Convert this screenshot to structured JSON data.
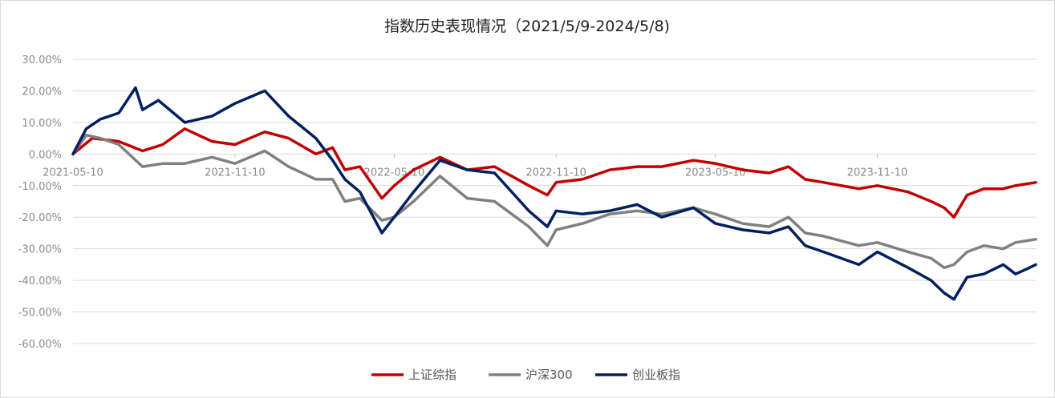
{
  "chart_data": {
    "type": "line",
    "title": "指数历史表现情况（2021/5/9-2024/5/8)",
    "xlabel": "",
    "ylabel": "",
    "ylim": [
      -0.6,
      0.3
    ],
    "y_ticks": [
      "30.00%",
      "20.00%",
      "10.00%",
      "0.00%",
      "-10.00%",
      "-20.00%",
      "-30.00%",
      "-40.00%",
      "-50.00%",
      "-60.00%"
    ],
    "y_tick_values": [
      0.3,
      0.2,
      0.1,
      0.0,
      -0.1,
      -0.2,
      -0.3,
      -0.4,
      -0.5,
      -0.6
    ],
    "x_ticks": [
      "2021-05-10",
      "2021-11-10",
      "2022-05-10",
      "2022-11-10",
      "2023-05-10",
      "2023-11-10"
    ],
    "x_range": [
      "2021-05-10",
      "2024-05-08"
    ],
    "grid": true,
    "legend_position": "bottom",
    "series": [
      {
        "name": "上证综指",
        "color": "#c00000",
        "points": [
          [
            "2021-05-10",
            0.0
          ],
          [
            "2021-06-01",
            0.05
          ],
          [
            "2021-07-01",
            0.04
          ],
          [
            "2021-07-28",
            0.01
          ],
          [
            "2021-08-20",
            0.03
          ],
          [
            "2021-09-14",
            0.08
          ],
          [
            "2021-10-15",
            0.04
          ],
          [
            "2021-11-10",
            0.03
          ],
          [
            "2021-12-14",
            0.07
          ],
          [
            "2022-01-10",
            0.05
          ],
          [
            "2022-02-10",
            0.0
          ],
          [
            "2022-03-01",
            0.02
          ],
          [
            "2022-03-15",
            -0.05
          ],
          [
            "2022-04-01",
            -0.04
          ],
          [
            "2022-04-26",
            -0.14
          ],
          [
            "2022-05-10",
            -0.1
          ],
          [
            "2022-06-01",
            -0.05
          ],
          [
            "2022-07-01",
            -0.01
          ],
          [
            "2022-08-01",
            -0.05
          ],
          [
            "2022-09-01",
            -0.04
          ],
          [
            "2022-10-10",
            -0.1
          ],
          [
            "2022-10-31",
            -0.13
          ],
          [
            "2022-11-10",
            -0.09
          ],
          [
            "2022-12-10",
            -0.08
          ],
          [
            "2023-01-10",
            -0.05
          ],
          [
            "2023-02-10",
            -0.04
          ],
          [
            "2023-03-10",
            -0.04
          ],
          [
            "2023-04-15",
            -0.02
          ],
          [
            "2023-05-10",
            -0.03
          ],
          [
            "2023-06-10",
            -0.05
          ],
          [
            "2023-07-10",
            -0.06
          ],
          [
            "2023-08-01",
            -0.04
          ],
          [
            "2023-08-20",
            -0.08
          ],
          [
            "2023-09-10",
            -0.09
          ],
          [
            "2023-10-20",
            -0.11
          ],
          [
            "2023-11-10",
            -0.1
          ],
          [
            "2023-12-15",
            -0.12
          ],
          [
            "2024-01-10",
            -0.15
          ],
          [
            "2024-01-25",
            -0.17
          ],
          [
            "2024-02-05",
            -0.2
          ],
          [
            "2024-02-20",
            -0.13
          ],
          [
            "2024-03-10",
            -0.11
          ],
          [
            "2024-04-01",
            -0.11
          ],
          [
            "2024-04-15",
            -0.1
          ],
          [
            "2024-05-08",
            -0.09
          ]
        ]
      },
      {
        "name": "沪深300",
        "color": "#808080",
        "points": [
          [
            "2021-05-10",
            0.0
          ],
          [
            "2021-05-25",
            0.06
          ],
          [
            "2021-06-10",
            0.05
          ],
          [
            "2021-07-01",
            0.03
          ],
          [
            "2021-07-28",
            -0.04
          ],
          [
            "2021-08-20",
            -0.03
          ],
          [
            "2021-09-14",
            -0.03
          ],
          [
            "2021-10-15",
            -0.01
          ],
          [
            "2021-11-10",
            -0.03
          ],
          [
            "2021-12-14",
            0.01
          ],
          [
            "2022-01-10",
            -0.04
          ],
          [
            "2022-02-10",
            -0.08
          ],
          [
            "2022-03-01",
            -0.08
          ],
          [
            "2022-03-15",
            -0.15
          ],
          [
            "2022-04-01",
            -0.14
          ],
          [
            "2022-04-26",
            -0.21
          ],
          [
            "2022-05-10",
            -0.2
          ],
          [
            "2022-06-01",
            -0.15
          ],
          [
            "2022-07-01",
            -0.07
          ],
          [
            "2022-08-01",
            -0.14
          ],
          [
            "2022-09-01",
            -0.15
          ],
          [
            "2022-10-10",
            -0.23
          ],
          [
            "2022-10-31",
            -0.29
          ],
          [
            "2022-11-10",
            -0.24
          ],
          [
            "2022-12-10",
            -0.22
          ],
          [
            "2023-01-10",
            -0.19
          ],
          [
            "2023-02-10",
            -0.18
          ],
          [
            "2023-03-10",
            -0.19
          ],
          [
            "2023-04-15",
            -0.17
          ],
          [
            "2023-05-10",
            -0.19
          ],
          [
            "2023-06-10",
            -0.22
          ],
          [
            "2023-07-10",
            -0.23
          ],
          [
            "2023-08-01",
            -0.2
          ],
          [
            "2023-08-20",
            -0.25
          ],
          [
            "2023-09-10",
            -0.26
          ],
          [
            "2023-10-20",
            -0.29
          ],
          [
            "2023-11-10",
            -0.28
          ],
          [
            "2023-12-15",
            -0.31
          ],
          [
            "2024-01-10",
            -0.33
          ],
          [
            "2024-01-25",
            -0.36
          ],
          [
            "2024-02-05",
            -0.35
          ],
          [
            "2024-02-20",
            -0.31
          ],
          [
            "2024-03-10",
            -0.29
          ],
          [
            "2024-04-01",
            -0.3
          ],
          [
            "2024-04-15",
            -0.28
          ],
          [
            "2024-05-08",
            -0.27
          ]
        ]
      },
      {
        "name": "创业板指",
        "color": "#002060",
        "points": [
          [
            "2021-05-10",
            0.0
          ],
          [
            "2021-05-25",
            0.08
          ],
          [
            "2021-06-10",
            0.11
          ],
          [
            "2021-07-01",
            0.13
          ],
          [
            "2021-07-20",
            0.21
          ],
          [
            "2021-07-28",
            0.14
          ],
          [
            "2021-08-15",
            0.17
          ],
          [
            "2021-09-14",
            0.1
          ],
          [
            "2021-10-15",
            0.12
          ],
          [
            "2021-11-10",
            0.16
          ],
          [
            "2021-12-14",
            0.2
          ],
          [
            "2022-01-10",
            0.12
          ],
          [
            "2022-02-10",
            0.05
          ],
          [
            "2022-03-01",
            -0.02
          ],
          [
            "2022-03-15",
            -0.08
          ],
          [
            "2022-04-01",
            -0.12
          ],
          [
            "2022-04-26",
            -0.25
          ],
          [
            "2022-05-10",
            -0.2
          ],
          [
            "2022-06-01",
            -0.12
          ],
          [
            "2022-07-01",
            -0.02
          ],
          [
            "2022-08-01",
            -0.05
          ],
          [
            "2022-09-01",
            -0.06
          ],
          [
            "2022-10-10",
            -0.18
          ],
          [
            "2022-10-31",
            -0.23
          ],
          [
            "2022-11-10",
            -0.18
          ],
          [
            "2022-12-10",
            -0.19
          ],
          [
            "2023-01-10",
            -0.18
          ],
          [
            "2023-02-10",
            -0.16
          ],
          [
            "2023-03-10",
            -0.2
          ],
          [
            "2023-04-15",
            -0.17
          ],
          [
            "2023-05-10",
            -0.22
          ],
          [
            "2023-06-10",
            -0.24
          ],
          [
            "2023-07-10",
            -0.25
          ],
          [
            "2023-08-01",
            -0.23
          ],
          [
            "2023-08-20",
            -0.29
          ],
          [
            "2023-09-10",
            -0.31
          ],
          [
            "2023-10-20",
            -0.35
          ],
          [
            "2023-11-10",
            -0.31
          ],
          [
            "2023-12-15",
            -0.36
          ],
          [
            "2024-01-10",
            -0.4
          ],
          [
            "2024-01-25",
            -0.44
          ],
          [
            "2024-02-05",
            -0.46
          ],
          [
            "2024-02-20",
            -0.39
          ],
          [
            "2024-03-10",
            -0.38
          ],
          [
            "2024-04-01",
            -0.35
          ],
          [
            "2024-04-15",
            -0.38
          ],
          [
            "2024-05-01",
            -0.36
          ],
          [
            "2024-05-08",
            -0.35
          ]
        ]
      }
    ]
  }
}
